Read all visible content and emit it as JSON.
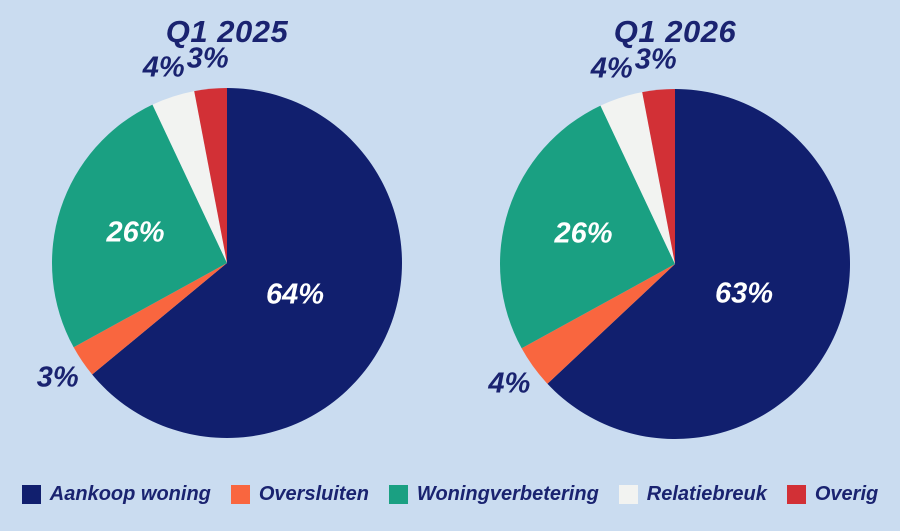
{
  "page": {
    "background": "#cadcf0",
    "text_color": "#1a2370"
  },
  "chart_data": [
    {
      "type": "pie",
      "title": "Q1 2025",
      "legend_position": "bottom",
      "slices": [
        {
          "label": "Aankoop woning",
          "value": 64,
          "display": "64%",
          "color": "#111f6e"
        },
        {
          "label": "Oversluiten",
          "value": 3,
          "display": "3%",
          "color": "#f9663f"
        },
        {
          "label": "Woningverbetering",
          "value": 26,
          "display": "26%",
          "color": "#1aa082"
        },
        {
          "label": "Relatiebreuk",
          "value": 4,
          "display": "4%",
          "color": "#f2f3f1"
        },
        {
          "label": "Overig",
          "value": 3,
          "display": "3%",
          "color": "#d23036"
        }
      ]
    },
    {
      "type": "pie",
      "title": "Q1 2026",
      "legend_position": "bottom",
      "slices": [
        {
          "label": "Aankoop woning",
          "value": 63,
          "display": "63%",
          "color": "#111f6e"
        },
        {
          "label": "Oversluiten",
          "value": 4,
          "display": "4%",
          "color": "#f9663f"
        },
        {
          "label": "Woningverbetering",
          "value": 26,
          "display": "26%",
          "color": "#1aa082"
        },
        {
          "label": "Relatiebreuk",
          "value": 4,
          "display": "4%",
          "color": "#f2f3f1"
        },
        {
          "label": "Overig",
          "value": 3,
          "display": "3%",
          "color": "#d23036"
        }
      ]
    }
  ],
  "legend": {
    "items": [
      {
        "label": "Aankoop woning",
        "color": "#111f6e"
      },
      {
        "label": "Oversluiten",
        "color": "#f9663f"
      },
      {
        "label": "Woningverbetering",
        "color": "#1aa082"
      },
      {
        "label": "Relatiebreuk",
        "color": "#f2f3f1"
      },
      {
        "label": "Overig",
        "color": "#d23036"
      }
    ]
  }
}
